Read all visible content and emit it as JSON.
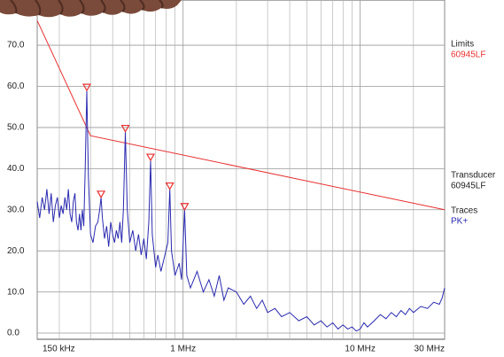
{
  "chart_data": {
    "type": "line",
    "xscale": "log",
    "xlim": [
      0.15,
      30
    ],
    "ylim": [
      -1.5,
      81
    ],
    "grid": true,
    "yticks": [
      {
        "value": 0,
        "label": "0.0"
      },
      {
        "value": 10,
        "label": "10.0"
      },
      {
        "value": 20,
        "label": "20.0"
      },
      {
        "value": 30,
        "label": "30.0"
      },
      {
        "value": 40,
        "label": "40.0"
      },
      {
        "value": 50,
        "label": "50.0"
      },
      {
        "value": 60,
        "label": "60.0"
      },
      {
        "value": 70,
        "label": "70.0"
      }
    ],
    "xticks": [
      {
        "value": 0.15,
        "label": "150 kHz"
      },
      {
        "value": 1,
        "label": "1 MHz"
      },
      {
        "value": 10,
        "label": "10 MHz"
      },
      {
        "value": 30,
        "label": "30 MHz"
      }
    ],
    "xgrid": [
      0.2,
      0.3,
      0.4,
      0.5,
      0.6,
      0.7,
      0.8,
      0.9,
      2,
      3,
      4,
      5,
      6,
      7,
      8,
      9,
      20
    ],
    "series": [
      {
        "group": "Limits",
        "name": "60945LF",
        "color": "#e83030",
        "x": [
          0.15,
          0.3,
          30
        ],
        "values": [
          76,
          48,
          30
        ]
      },
      {
        "group": "Traces",
        "name": "PK+",
        "color": "#2a2ab0",
        "x": [
          0.15,
          0.155,
          0.16,
          0.165,
          0.17,
          0.175,
          0.18,
          0.185,
          0.19,
          0.195,
          0.2,
          0.205,
          0.21,
          0.215,
          0.22,
          0.225,
          0.23,
          0.235,
          0.24,
          0.245,
          0.25,
          0.255,
          0.26,
          0.265,
          0.27,
          0.275,
          0.28,
          0.286,
          0.292,
          0.3,
          0.31,
          0.32,
          0.33,
          0.338,
          0.344,
          0.35,
          0.36,
          0.37,
          0.38,
          0.39,
          0.4,
          0.41,
          0.42,
          0.43,
          0.44,
          0.45,
          0.46,
          0.472,
          0.484,
          0.5,
          0.52,
          0.54,
          0.56,
          0.58,
          0.6,
          0.62,
          0.64,
          0.655,
          0.67,
          0.7,
          0.72,
          0.75,
          0.78,
          0.82,
          0.841,
          0.86,
          0.9,
          0.95,
          0.98,
          1.02,
          1.05,
          1.1,
          1.2,
          1.3,
          1.4,
          1.5,
          1.6,
          1.7,
          1.8,
          2,
          2.2,
          2.4,
          2.6,
          2.8,
          3,
          3.3,
          3.6,
          4,
          4.5,
          5,
          5.5,
          6,
          6.5,
          7,
          7.5,
          8,
          8.5,
          9,
          9.5,
          10,
          10.5,
          11,
          12,
          13,
          14,
          15,
          16,
          17,
          18,
          19,
          20,
          22,
          24,
          26,
          28,
          29,
          30
        ],
        "values": [
          32,
          28,
          33,
          30,
          35,
          29,
          34,
          27,
          31,
          33,
          28,
          31,
          29,
          33,
          30,
          35,
          29,
          27,
          32,
          34,
          27,
          25,
          29,
          25,
          30,
          26,
          40,
          59,
          38,
          24,
          22,
          26,
          27,
          30,
          33,
          28,
          23,
          26,
          21,
          27,
          24,
          22,
          25,
          23,
          27,
          22,
          30,
          49,
          30,
          22,
          25,
          20,
          24,
          19,
          23,
          18,
          27,
          42,
          24,
          16,
          19,
          15,
          18,
          22,
          35,
          20,
          14,
          17,
          13,
          30,
          14,
          11,
          15,
          10,
          13,
          9,
          14,
          8,
          11,
          10,
          7,
          9,
          6,
          8,
          5,
          6,
          4,
          5,
          3,
          4,
          2,
          3,
          1.5,
          2.5,
          1,
          2,
          1,
          1.5,
          0.5,
          1,
          2.5,
          1.5,
          3,
          4.5,
          3.5,
          5,
          4,
          5.5,
          4.5,
          6,
          5,
          6.5,
          6,
          7.5,
          7,
          8.5,
          11
        ]
      }
    ],
    "transducer": {
      "group": "Transducer",
      "name": "60945LF"
    },
    "peaks": {
      "color": "#e83030",
      "x": [
        0.286,
        0.344,
        0.472,
        0.655,
        0.841,
        1.02
      ],
      "values": [
        59,
        33,
        49,
        42,
        35,
        30
      ]
    }
  }
}
